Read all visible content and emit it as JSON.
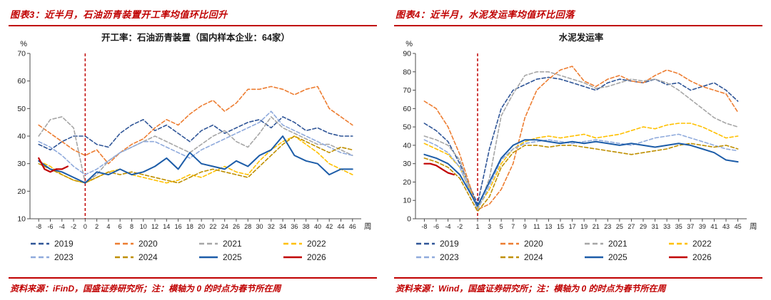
{
  "accent_color": "#c00000",
  "chart_data": [
    {
      "type": "line",
      "header": "图表3：近半月，石油沥青装置开工率均值环比回升",
      "title": "开工率：石油沥青装置（国内样本企业：64家）",
      "y_unit": "%",
      "x_unit": "周",
      "ylim": [
        10,
        70
      ],
      "xlim": [
        -9.5,
        47.5
      ],
      "y_ticks": [
        10,
        20,
        30,
        40,
        50,
        60,
        70
      ],
      "x_ticks": [
        -8,
        -6,
        -4,
        -2,
        0,
        2,
        4,
        6,
        8,
        10,
        12,
        14,
        16,
        18,
        20,
        22,
        24,
        26,
        28,
        30,
        32,
        34,
        36,
        38,
        40,
        42,
        44,
        46
      ],
      "vline_x": 0,
      "vline_color": "#c00000",
      "grid": false,
      "legend_position": "bottom",
      "source": "资料来源：iFinD，国盛证券研究所；注：横轴为 0 的时点为春节所在周",
      "series": [
        {
          "name": "2019",
          "color": "#2f5597",
          "dash": "5,3",
          "width": 1.6,
          "x": [
            -8,
            -6,
            -4,
            -2,
            0,
            2,
            4,
            6,
            8,
            10,
            12,
            14,
            16,
            18,
            20,
            22,
            24,
            26,
            28,
            30,
            32,
            34,
            36,
            38,
            40,
            42,
            44,
            46
          ],
          "y": [
            37,
            35,
            38,
            40,
            40,
            37,
            36,
            41,
            44,
            46,
            42,
            44,
            41,
            38,
            42,
            44,
            41,
            43,
            45,
            46,
            43,
            47,
            45,
            42,
            43,
            41,
            40,
            40
          ]
        },
        {
          "name": "2020",
          "color": "#ed7d31",
          "dash": "5,3",
          "width": 1.6,
          "x": [
            -8,
            -6,
            -4,
            -2,
            0,
            2,
            4,
            6,
            8,
            10,
            12,
            14,
            16,
            18,
            20,
            22,
            24,
            26,
            28,
            30,
            32,
            34,
            36,
            38,
            40,
            42,
            44,
            46
          ],
          "y": [
            44,
            41,
            38,
            35,
            33,
            35,
            30,
            34,
            37,
            39,
            43,
            46,
            44,
            48,
            51,
            53,
            49,
            52,
            57,
            57,
            58,
            57,
            55,
            57,
            58,
            50,
            47,
            44
          ]
        },
        {
          "name": "2021",
          "color": "#a6a6a6",
          "dash": "5,3",
          "width": 1.6,
          "x": [
            -8,
            -6,
            -4,
            -2,
            0,
            2,
            4,
            6,
            8,
            10,
            12,
            14,
            16,
            18,
            20,
            22,
            24,
            26,
            28,
            30,
            32,
            34,
            36,
            38,
            40,
            42,
            44,
            46
          ],
          "y": [
            40,
            46,
            47,
            43,
            23,
            26,
            31,
            34,
            36,
            38,
            40,
            38,
            36,
            34,
            37,
            40,
            42,
            38,
            36,
            41,
            47,
            43,
            41,
            39,
            37,
            37,
            35,
            33
          ]
        },
        {
          "name": "2022",
          "color": "#ffc000",
          "dash": "5,3",
          "width": 1.6,
          "x": [
            -8,
            -6,
            -4,
            -2,
            0,
            2,
            4,
            6,
            8,
            10,
            12,
            14,
            16,
            18,
            20,
            22,
            24,
            26,
            28,
            30,
            32,
            34,
            36,
            38,
            40,
            42,
            44,
            46
          ],
          "y": [
            31,
            29,
            26,
            24,
            23,
            25,
            27,
            28,
            26,
            25,
            24,
            23,
            24,
            26,
            25,
            27,
            29,
            27,
            26,
            31,
            35,
            38,
            40,
            37,
            34,
            30,
            28,
            26
          ]
        },
        {
          "name": "2023",
          "color": "#8faadc",
          "dash": "5,3",
          "width": 1.6,
          "x": [
            -8,
            -6,
            -4,
            -2,
            0,
            2,
            4,
            6,
            8,
            10,
            12,
            14,
            16,
            18,
            20,
            22,
            24,
            26,
            28,
            30,
            32,
            34,
            36,
            38,
            40,
            42,
            44,
            46
          ],
          "y": [
            38,
            36,
            33,
            29,
            26,
            28,
            31,
            34,
            36,
            38,
            38,
            36,
            34,
            32,
            35,
            37,
            39,
            41,
            43,
            45,
            49,
            44,
            42,
            40,
            38,
            36,
            34,
            33
          ]
        },
        {
          "name": "2024",
          "color": "#bf8f00",
          "dash": "5,3",
          "width": 1.6,
          "x": [
            -8,
            -6,
            -4,
            -2,
            0,
            2,
            4,
            6,
            8,
            10,
            12,
            14,
            16,
            18,
            20,
            22,
            24,
            26,
            28,
            30,
            32,
            34,
            36,
            38,
            40,
            42,
            44,
            46
          ],
          "y": [
            30,
            28,
            26,
            24,
            23,
            25,
            27,
            26,
            27,
            26,
            25,
            24,
            23,
            25,
            27,
            28,
            27,
            26,
            25,
            29,
            33,
            37,
            40,
            38,
            36,
            34,
            36,
            35
          ]
        },
        {
          "name": "2025",
          "color": "#1c5ca8",
          "dash": "",
          "width": 2,
          "x": [
            -8,
            -6,
            -4,
            -2,
            0,
            2,
            4,
            6,
            8,
            10,
            12,
            14,
            16,
            18,
            20,
            22,
            24,
            26,
            28,
            30,
            32,
            34,
            36,
            38,
            40,
            42,
            44,
            46
          ],
          "y": [
            31,
            28,
            27,
            25,
            23,
            27,
            26,
            28,
            26,
            27,
            29,
            32,
            28,
            34,
            30,
            29,
            28,
            31,
            29,
            33,
            35,
            40,
            33,
            31,
            30,
            26,
            28,
            28
          ]
        },
        {
          "name": "2026",
          "color": "#c00000",
          "dash": "",
          "width": 2.2,
          "x": [
            -8,
            -7,
            -6,
            -5,
            -4,
            -3
          ],
          "y": [
            32,
            28,
            27,
            28,
            28,
            29
          ]
        }
      ]
    },
    {
      "type": "line",
      "header": "图表4：近半月，水泥发运率均值环比回落",
      "title": "水泥发运率",
      "y_unit": "%",
      "x_unit": "周",
      "ylim": [
        0,
        90
      ],
      "xlim": [
        -9.5,
        46.5
      ],
      "y_ticks": [
        0,
        10,
        20,
        30,
        40,
        50,
        60,
        70,
        80,
        90
      ],
      "x_ticks": [
        -8,
        -6,
        -4,
        -2,
        1,
        3,
        5,
        7,
        9,
        11,
        13,
        15,
        17,
        19,
        21,
        23,
        25,
        27,
        29,
        31,
        33,
        35,
        37,
        39,
        41,
        43,
        45
      ],
      "vline_x": 1,
      "vline_color": "#c00000",
      "grid": false,
      "legend_position": "bottom",
      "source": "资料来源：Wind，国盛证券研究所；注：横轴为 0 的时点为春节所在周",
      "series": [
        {
          "name": "2019",
          "color": "#2f5597",
          "dash": "5,3",
          "width": 1.6,
          "x": [
            -8,
            -6,
            -4,
            -2,
            1,
            3,
            5,
            7,
            9,
            11,
            13,
            15,
            17,
            19,
            21,
            23,
            25,
            27,
            29,
            31,
            33,
            35,
            37,
            39,
            41,
            43,
            45
          ],
          "y": [
            52,
            48,
            42,
            30,
            8,
            38,
            60,
            70,
            73,
            76,
            77,
            76,
            74,
            72,
            70,
            74,
            76,
            75,
            74,
            76,
            73,
            74,
            70,
            72,
            74,
            70,
            64
          ]
        },
        {
          "name": "2020",
          "color": "#ed7d31",
          "dash": "5,3",
          "width": 1.6,
          "x": [
            -8,
            -6,
            -4,
            -2,
            1,
            3,
            5,
            7,
            9,
            11,
            13,
            15,
            17,
            19,
            21,
            23,
            25,
            27,
            29,
            31,
            33,
            35,
            37,
            39,
            41,
            43,
            45
          ],
          "y": [
            64,
            60,
            50,
            35,
            5,
            8,
            16,
            30,
            55,
            70,
            76,
            81,
            83,
            75,
            72,
            76,
            78,
            75,
            74,
            78,
            81,
            79,
            75,
            72,
            70,
            68,
            58
          ]
        },
        {
          "name": "2021",
          "color": "#a6a6a6",
          "dash": "5,3",
          "width": 1.6,
          "x": [
            -8,
            -6,
            -4,
            -2,
            1,
            3,
            5,
            7,
            9,
            11,
            13,
            15,
            17,
            19,
            21,
            23,
            25,
            27,
            29,
            31,
            33,
            35,
            37,
            39,
            41,
            43,
            45
          ],
          "y": [
            45,
            43,
            40,
            32,
            5,
            22,
            56,
            68,
            78,
            80,
            80,
            78,
            76,
            74,
            71,
            72,
            74,
            76,
            75,
            76,
            74,
            70,
            65,
            60,
            55,
            52,
            50
          ]
        },
        {
          "name": "2022",
          "color": "#ffc000",
          "dash": "5,3",
          "width": 1.6,
          "x": [
            -8,
            -6,
            -4,
            -2,
            1,
            3,
            5,
            7,
            9,
            11,
            13,
            15,
            17,
            19,
            21,
            23,
            25,
            27,
            29,
            31,
            33,
            35,
            37,
            39,
            41,
            43,
            45
          ],
          "y": [
            41,
            38,
            35,
            28,
            6,
            16,
            30,
            38,
            42,
            44,
            45,
            44,
            45,
            46,
            44,
            45,
            46,
            48,
            50,
            49,
            51,
            52,
            52,
            50,
            47,
            44,
            45
          ]
        },
        {
          "name": "2023",
          "color": "#8faadc",
          "dash": "5,3",
          "width": 1.6,
          "x": [
            -8,
            -6,
            -4,
            -2,
            1,
            3,
            5,
            7,
            9,
            11,
            13,
            15,
            17,
            19,
            21,
            23,
            25,
            27,
            29,
            31,
            33,
            35,
            37,
            39,
            41,
            43,
            45
          ],
          "y": [
            43,
            40,
            36,
            28,
            5,
            18,
            32,
            38,
            41,
            42,
            43,
            42,
            41,
            42,
            43,
            42,
            41,
            40,
            42,
            44,
            45,
            46,
            44,
            42,
            40,
            38,
            37
          ]
        },
        {
          "name": "2024",
          "color": "#bf8f00",
          "dash": "5,3",
          "width": 1.6,
          "x": [
            -8,
            -6,
            -4,
            -2,
            1,
            3,
            5,
            7,
            9,
            11,
            13,
            15,
            17,
            19,
            21,
            23,
            25,
            27,
            29,
            31,
            33,
            35,
            37,
            39,
            41,
            43,
            45
          ],
          "y": [
            33,
            31,
            28,
            22,
            4,
            12,
            28,
            36,
            40,
            40,
            39,
            40,
            40,
            39,
            38,
            37,
            36,
            35,
            36,
            37,
            38,
            40,
            41,
            40,
            39,
            40,
            38
          ]
        },
        {
          "name": "2025",
          "color": "#1c5ca8",
          "dash": "",
          "width": 2,
          "x": [
            -8,
            -6,
            -4,
            -2,
            1,
            3,
            5,
            7,
            9,
            11,
            13,
            15,
            17,
            19,
            21,
            23,
            25,
            27,
            29,
            31,
            33,
            35,
            37,
            39,
            41,
            43,
            45
          ],
          "y": [
            35,
            33,
            30,
            24,
            7,
            20,
            33,
            40,
            43,
            43,
            42,
            41,
            42,
            41,
            42,
            41,
            40,
            41,
            40,
            39,
            40,
            41,
            40,
            38,
            36,
            32,
            31
          ]
        },
        {
          "name": "2026",
          "color": "#c00000",
          "dash": "",
          "width": 2.2,
          "x": [
            -8,
            -7,
            -6,
            -5,
            -4,
            -3
          ],
          "y": [
            30,
            30,
            29,
            27,
            25,
            24
          ]
        }
      ]
    }
  ]
}
